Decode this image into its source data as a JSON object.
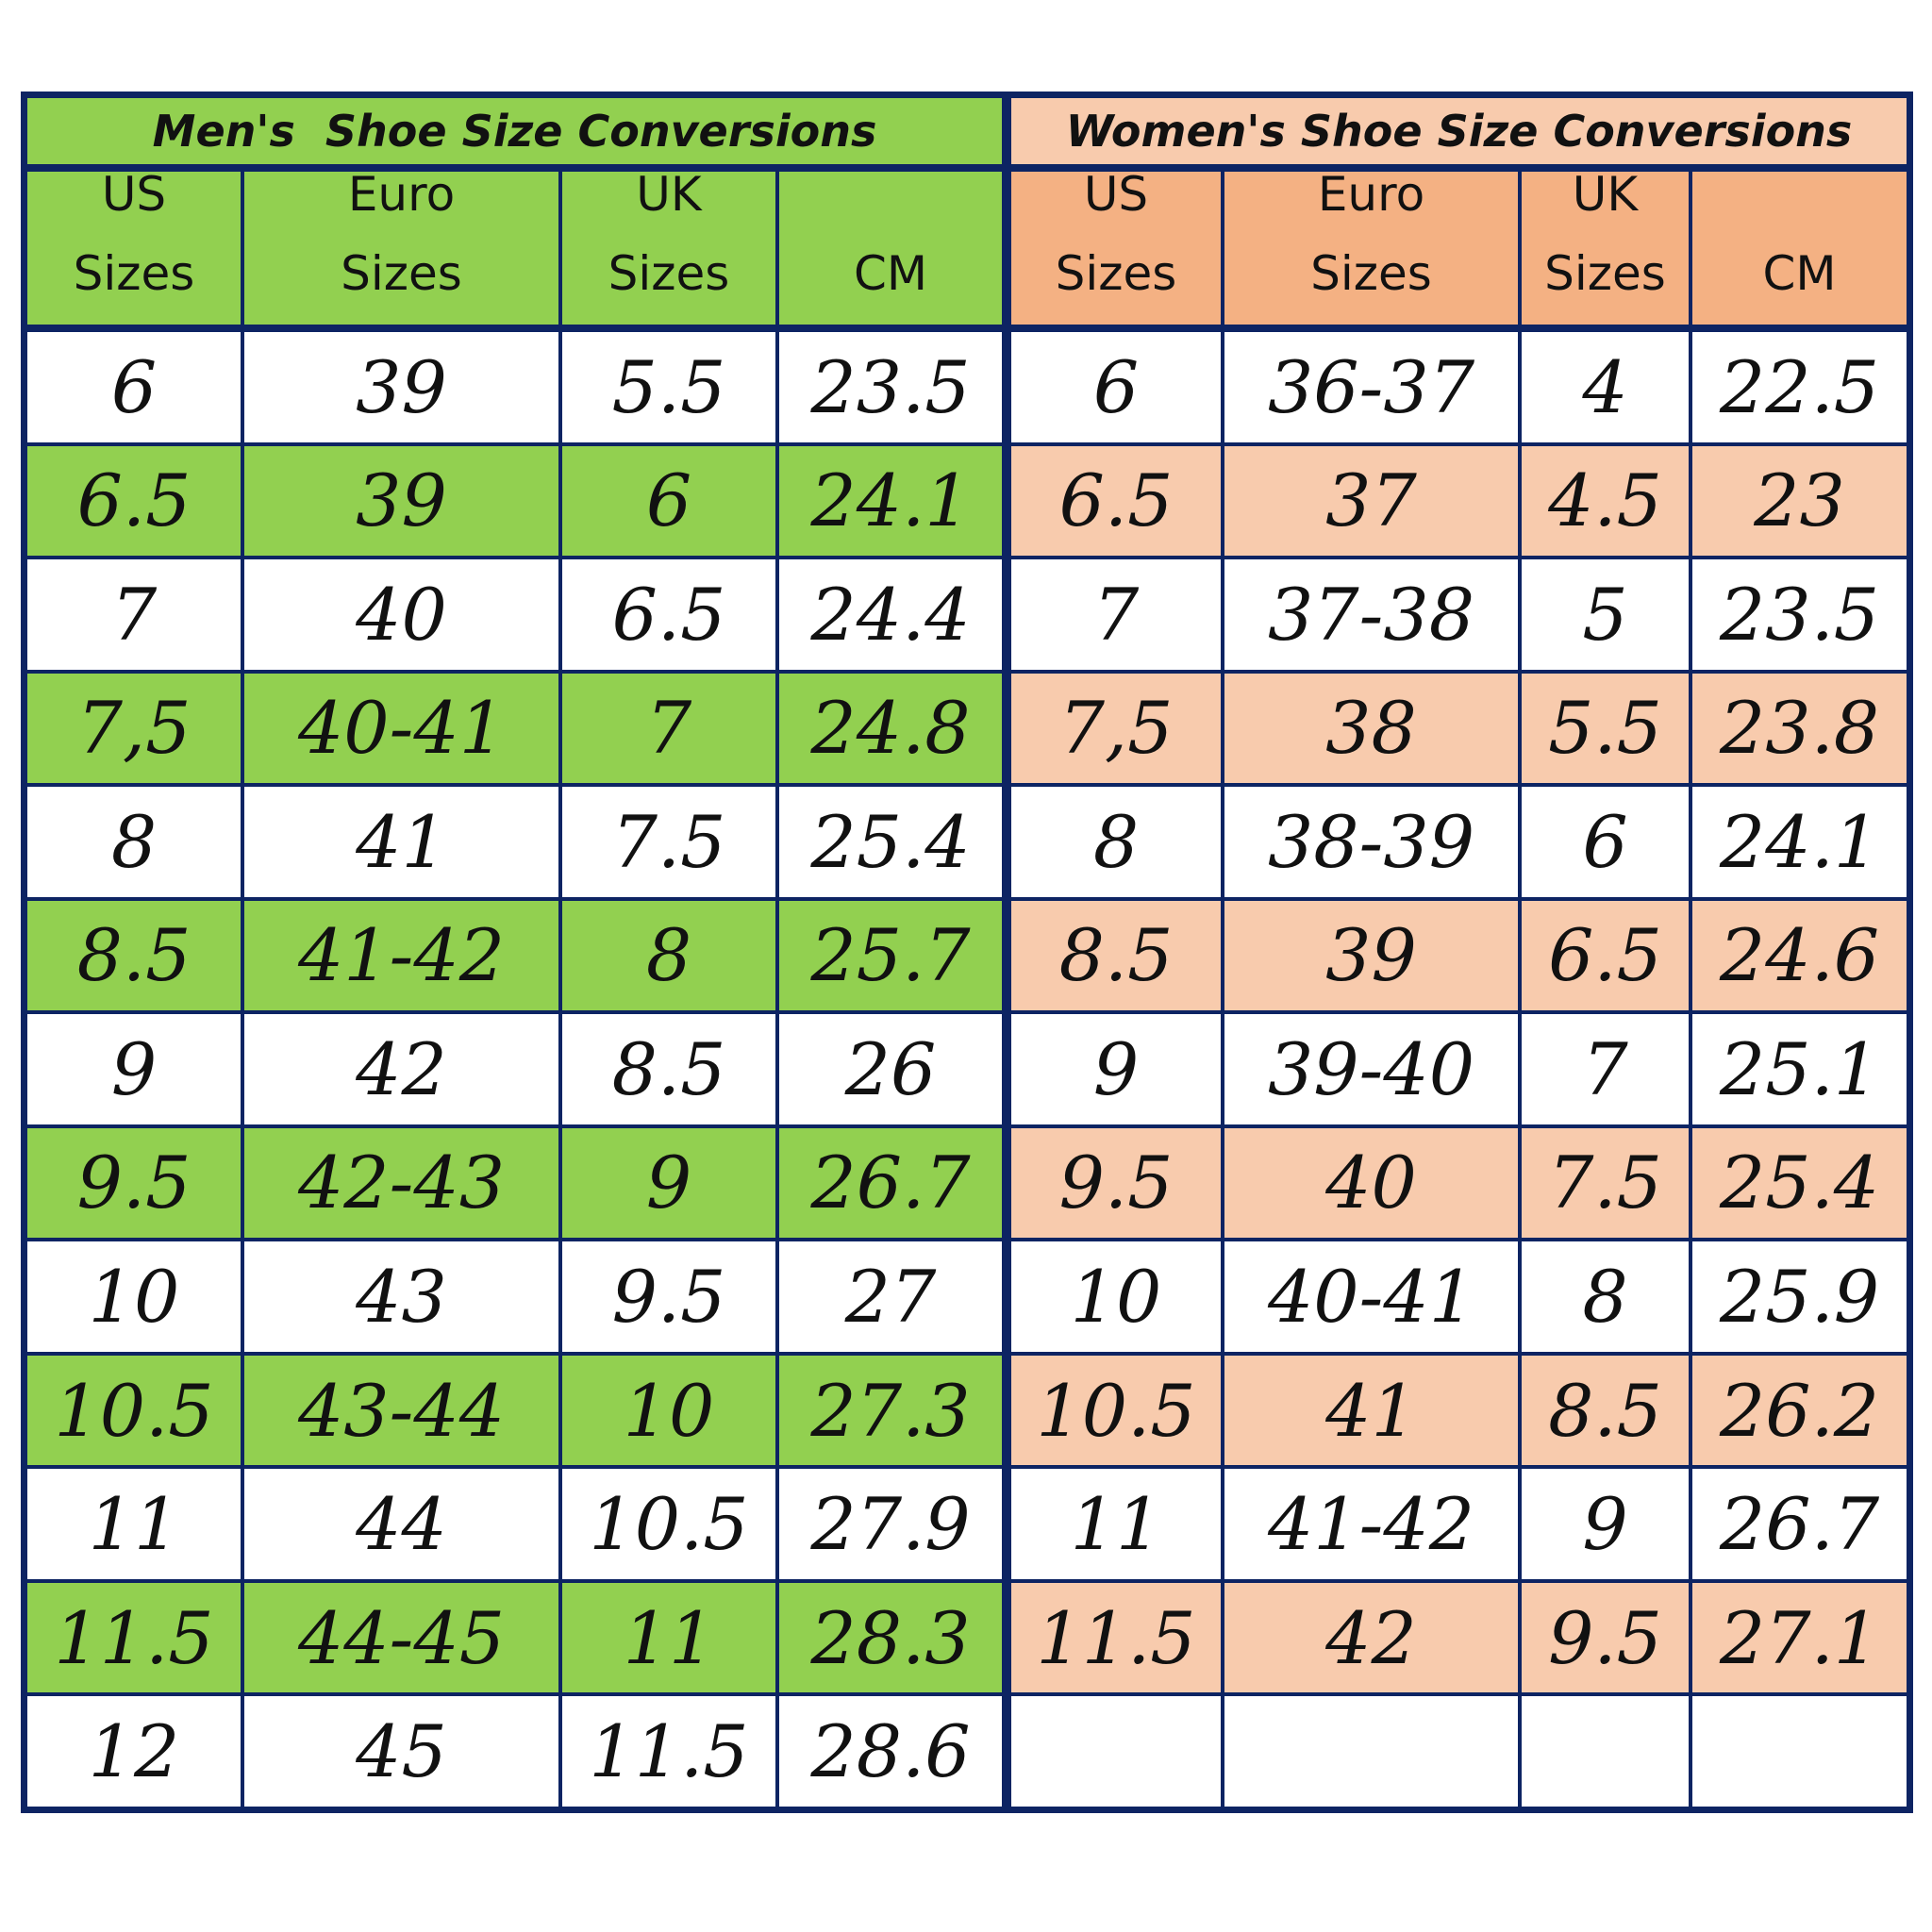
{
  "men": {
    "title": "Men's  Shoe Size Conversions",
    "headers": [
      {
        "line1": "US",
        "line2": "Sizes"
      },
      {
        "line1": "Euro",
        "line2": "Sizes"
      },
      {
        "line1": "UK",
        "line2": "Sizes"
      },
      {
        "line1": "",
        "line2": "CM"
      }
    ],
    "rows": [
      [
        "6",
        "39",
        "5.5",
        "23.5"
      ],
      [
        "6.5",
        "39",
        "6",
        "24.1"
      ],
      [
        "7",
        "40",
        "6.5",
        "24.4"
      ],
      [
        "7,5",
        "40-41",
        "7",
        "24.8"
      ],
      [
        "8",
        "41",
        "7.5",
        "25.4"
      ],
      [
        "8.5",
        "41-42",
        "8",
        "25.7"
      ],
      [
        "9",
        "42",
        "8.5",
        "26"
      ],
      [
        "9.5",
        "42-43",
        "9",
        "26.7"
      ],
      [
        "10",
        "43",
        "9.5",
        "27"
      ],
      [
        "10.5",
        "43-44",
        "10",
        "27.3"
      ],
      [
        "11",
        "44",
        "10.5",
        "27.9"
      ],
      [
        "11.5",
        "44-45",
        "11",
        "28.3"
      ],
      [
        "12",
        "45",
        "11.5",
        "28.6"
      ]
    ],
    "colors": {
      "header": "#92d050",
      "alt_row": "#92d050"
    }
  },
  "women": {
    "title": "Women's Shoe Size Conversions",
    "headers": [
      {
        "line1": "US",
        "line2": "Sizes"
      },
      {
        "line1": "Euro",
        "line2": "Sizes"
      },
      {
        "line1": "UK",
        "line2": "Sizes"
      },
      {
        "line1": "",
        "line2": "CM"
      }
    ],
    "rows": [
      [
        "6",
        "36-37",
        "4",
        "22.5"
      ],
      [
        "6.5",
        "37",
        "4.5",
        "23"
      ],
      [
        "7",
        "37-38",
        "5",
        "23.5"
      ],
      [
        "7,5",
        "38",
        "5.5",
        "23.8"
      ],
      [
        "8",
        "38-39",
        "6",
        "24.1"
      ],
      [
        "8.5",
        "39",
        "6.5",
        "24.6"
      ],
      [
        "9",
        "39-40",
        "7",
        "25.1"
      ],
      [
        "9.5",
        "40",
        "7.5",
        "25.4"
      ],
      [
        "10",
        "40-41",
        "8",
        "25.9"
      ],
      [
        "10.5",
        "41",
        "8.5",
        "26.2"
      ],
      [
        "11",
        "41-42",
        "9",
        "26.7"
      ],
      [
        "11.5",
        "42",
        "9.5",
        "27.1"
      ],
      [
        "",
        "",
        "",
        ""
      ]
    ],
    "colors": {
      "title": "#f8cbad",
      "header": "#f4b183",
      "alt_row": "#f8cbad"
    }
  },
  "colors": {
    "border": "#0d2463",
    "row_bg": "#ffffff"
  }
}
